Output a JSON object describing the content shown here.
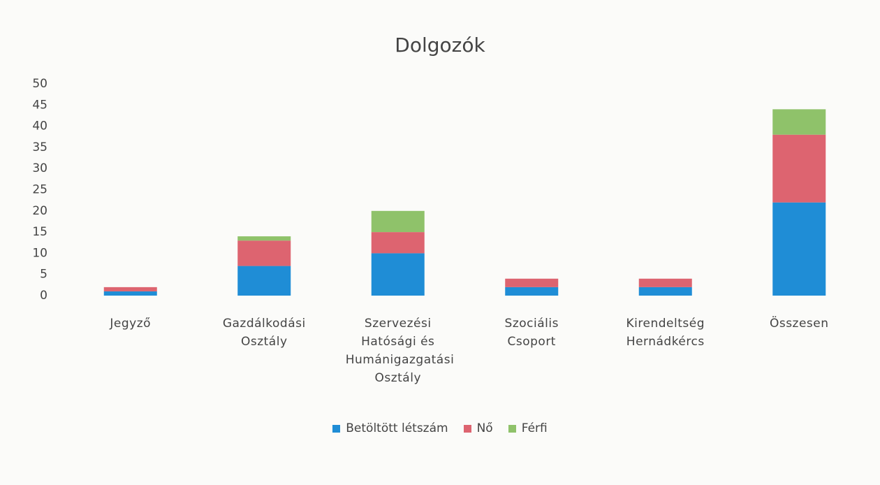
{
  "chart_data": {
    "type": "stacked_bar",
    "title": "Dolgozók",
    "categories": [
      "Jegyző",
      "Gazdálkodási Osztály",
      "Szervezési Hatósági és Humánigazgatási Osztály",
      "Szociális Csoport",
      "Kirendeltség Hernádkércs",
      "Összesen"
    ],
    "series": [
      {
        "name": "Betöltött létszám",
        "color": "#1f8dd6",
        "values": [
          1,
          7,
          10,
          2,
          2,
          22
        ]
      },
      {
        "name": "Nő",
        "color": "#dd6470",
        "values": [
          1,
          6,
          5,
          2,
          2,
          16
        ]
      },
      {
        "name": "Férfi",
        "color": "#8fc26a",
        "values": [
          0,
          1,
          5,
          0,
          0,
          6
        ]
      }
    ],
    "ylim": [
      0,
      50
    ],
    "yticks": [
      0,
      5,
      10,
      15,
      20,
      25,
      30,
      35,
      40,
      45,
      50
    ],
    "grid": false,
    "legend": "bottom"
  }
}
